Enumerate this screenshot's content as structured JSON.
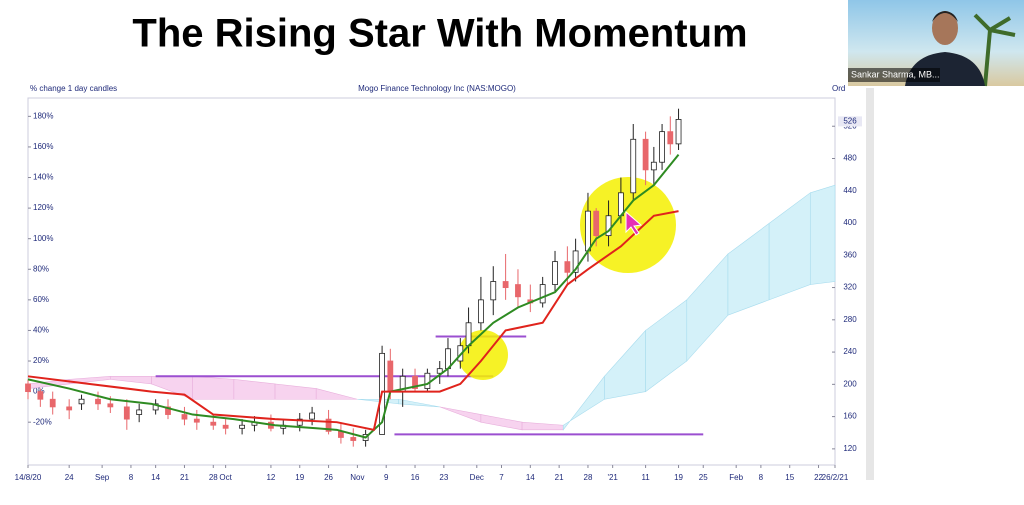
{
  "chart_data": {
    "type": "candlestick",
    "title": "The Rising Star With Momentum",
    "subtitle": "% change 1 day candles",
    "instrument": "Mogo Finance Technology Inc (NAS:MOGO)",
    "corner_label": "Ord",
    "x": [
      0,
      3,
      6,
      10,
      13,
      17,
      20,
      24,
      27,
      31,
      34,
      38,
      41,
      45,
      48,
      52,
      55,
      59,
      62,
      66,
      69,
      73,
      76,
      79,
      82,
      86,
      88,
      91,
      94,
      97,
      100,
      102,
      105,
      107,
      110,
      113,
      116,
      119,
      122,
      125,
      128,
      131,
      133,
      136,
      138,
      141,
      144,
      147,
      150,
      152,
      154,
      156,
      158
    ],
    "open": [
      5,
      0,
      -5,
      -10,
      -8,
      -5,
      -8,
      -10,
      -15,
      -12,
      -10,
      -15,
      -18,
      -20,
      -22,
      -24,
      -22,
      -20,
      -24,
      -22,
      -18,
      -18,
      -26,
      -30,
      -32,
      -28,
      20,
      0,
      10,
      2,
      12,
      15,
      20,
      30,
      45,
      60,
      72,
      70,
      60,
      58,
      70,
      85,
      78,
      92,
      118,
      102,
      115,
      130,
      165,
      145,
      150,
      170,
      162
    ],
    "high": [
      8,
      2,
      0,
      -5,
      -2,
      0,
      -3,
      -5,
      -8,
      -5,
      -5,
      -10,
      -12,
      -15,
      -18,
      -18,
      -16,
      -15,
      -18,
      -14,
      -10,
      -12,
      -20,
      -24,
      -25,
      30,
      28,
      15,
      15,
      15,
      20,
      35,
      35,
      55,
      75,
      82,
      90,
      80,
      70,
      75,
      92,
      95,
      100,
      130,
      120,
      125,
      140,
      175,
      170,
      160,
      175,
      180,
      185
    ],
    "low": [
      -5,
      -10,
      -15,
      -18,
      -12,
      -12,
      -14,
      -25,
      -20,
      -15,
      -18,
      -22,
      -25,
      -25,
      -28,
      -28,
      -26,
      -26,
      -28,
      -26,
      -22,
      -28,
      -34,
      -36,
      -36,
      -28,
      -5,
      -10,
      0,
      0,
      5,
      10,
      15,
      25,
      40,
      50,
      60,
      55,
      52,
      55,
      65,
      70,
      72,
      85,
      95,
      95,
      110,
      125,
      135,
      135,
      145,
      155,
      158
    ],
    "close": [
      0,
      -5,
      -10,
      -12,
      -5,
      -8,
      -10,
      -18,
      -12,
      -8,
      -15,
      -18,
      -20,
      -22,
      -24,
      -22,
      -20,
      -24,
      -22,
      -18,
      -14,
      -26,
      -30,
      -32,
      -28,
      25,
      0,
      10,
      2,
      12,
      15,
      28,
      30,
      45,
      60,
      72,
      68,
      62,
      58,
      70,
      85,
      78,
      92,
      118,
      102,
      115,
      130,
      165,
      145,
      150,
      170,
      162,
      178
    ],
    "up_color": "#ffffff",
    "down_color": "#e8676b",
    "lines": [
      {
        "color": "#2e8b22",
        "x": [
          0,
          10,
          20,
          30,
          40,
          50,
          60,
          70,
          75,
          82,
          86,
          88,
          97,
          102,
          107,
          113,
          119,
          128,
          133,
          138,
          141,
          147,
          152,
          158
        ],
        "values": [
          8,
          2,
          -5,
          -8,
          -15,
          -18,
          -22,
          -24,
          -25,
          -30,
          -20,
          0,
          5,
          15,
          30,
          45,
          55,
          65,
          80,
          100,
          105,
          125,
          135,
          155
        ]
      },
      {
        "color": "#e0231c",
        "x": [
          0,
          15,
          30,
          38,
          45,
          60,
          75,
          84,
          86,
          100,
          105,
          110,
          116,
          125,
          131,
          136,
          144,
          152,
          158
        ],
        "values": [
          10,
          5,
          0,
          -2,
          -15,
          -18,
          -20,
          -25,
          0,
          0,
          5,
          20,
          40,
          45,
          70,
          80,
          95,
          115,
          118
        ]
      }
    ],
    "cloud": {
      "x": [
        0,
        10,
        20,
        30,
        40,
        50,
        60,
        70,
        80,
        90,
        100,
        110,
        120,
        130,
        140,
        150,
        160,
        170,
        180,
        190,
        196
      ],
      "span_a": [
        2,
        5,
        8,
        5,
        -5,
        -5,
        -5,
        -5,
        -5,
        -5,
        -10,
        -20,
        -25,
        -25,
        10,
        40,
        60,
        90,
        110,
        130,
        135
      ],
      "span_b": [
        5,
        8,
        10,
        10,
        10,
        8,
        5,
        2,
        -5,
        -8,
        -10,
        -15,
        -20,
        -22,
        -5,
        0,
        20,
        50,
        60,
        70,
        72
      ],
      "up_color": "#d4f1f9",
      "down_color": "#f7d3ef"
    },
    "levels": [
      {
        "value": 10,
        "x": [
          31,
          113
        ]
      },
      {
        "value": 36,
        "x": [
          99,
          121
        ]
      },
      {
        "value": -28,
        "x": [
          89,
          164
        ]
      }
    ],
    "level_color": "#9b4fd0",
    "xlim": [
      0,
      196
    ],
    "xticks": [
      {
        "value": 0,
        "label": "14/8/20"
      },
      {
        "value": 10,
        "label": "24"
      },
      {
        "value": 18,
        "label": "Sep"
      },
      {
        "value": 25,
        "label": "8"
      },
      {
        "value": 31,
        "label": "14"
      },
      {
        "value": 38,
        "label": "21"
      },
      {
        "value": 45,
        "label": "28"
      },
      {
        "value": 48,
        "label": "Oct"
      },
      {
        "value": 59,
        "label": "12"
      },
      {
        "value": 66,
        "label": "19"
      },
      {
        "value": 73,
        "label": "26"
      },
      {
        "value": 80,
        "label": "Nov"
      },
      {
        "value": 87,
        "label": "9"
      },
      {
        "value": 94,
        "label": "16"
      },
      {
        "value": 101,
        "label": "23"
      },
      {
        "value": 109,
        "label": "Dec"
      },
      {
        "value": 115,
        "label": "7"
      },
      {
        "value": 122,
        "label": "14"
      },
      {
        "value": 129,
        "label": "21"
      },
      {
        "value": 136,
        "label": "28"
      },
      {
        "value": 142,
        "label": "'21"
      },
      {
        "value": 150,
        "label": "11"
      },
      {
        "value": 158,
        "label": "19"
      },
      {
        "value": 164,
        "label": "25"
      },
      {
        "value": 172,
        "label": "Feb"
      },
      {
        "value": 178,
        "label": "8"
      },
      {
        "value": 185,
        "label": "15"
      },
      {
        "value": 192,
        "label": "22"
      },
      {
        "value": 196,
        "label": "26/2/21"
      }
    ],
    "ylim": [
      -48,
      192
    ],
    "yticks": [
      {
        "value": -20,
        "label": "-20%"
      },
      {
        "value": 0,
        "label": "0%"
      },
      {
        "value": 20,
        "label": "20%"
      },
      {
        "value": 40,
        "label": "40%"
      },
      {
        "value": 60,
        "label": "60%"
      },
      {
        "value": 80,
        "label": "80%"
      },
      {
        "value": 100,
        "label": "100%"
      },
      {
        "value": 120,
        "label": "120%"
      },
      {
        "value": 140,
        "label": "140%"
      },
      {
        "value": 160,
        "label": "160%"
      },
      {
        "value": 180,
        "label": "180%"
      }
    ],
    "y2lim": [
      100,
      555
    ],
    "y2ticks": [
      120,
      160,
      200,
      240,
      280,
      320,
      360,
      400,
      440,
      480,
      520
    ],
    "last_price": 526
  },
  "presenter": "Sankar Sharma, MB..."
}
